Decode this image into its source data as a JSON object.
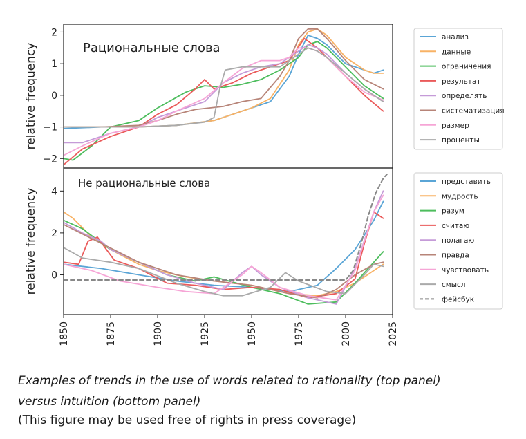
{
  "chart_data": [
    {
      "type": "line",
      "title": "Рациональные слова",
      "ylabel": "relative frequency",
      "xlim": [
        1850,
        2025
      ],
      "ylim": [
        -2.3,
        2.25
      ],
      "yticks": [
        -2,
        -1,
        0,
        1,
        2
      ],
      "legend_position": "right",
      "series": [
        {
          "name": "анализ",
          "color": "#5aa5d6",
          "dash": false,
          "x": [
            1850,
            1870,
            1890,
            1910,
            1930,
            1950,
            1960,
            1970,
            1975,
            1980,
            1985,
            1990,
            2000,
            2010,
            2015,
            2020
          ],
          "y": [
            -1.05,
            -1.0,
            -1.0,
            -0.95,
            -0.8,
            -0.4,
            -0.2,
            0.6,
            1.3,
            1.9,
            1.8,
            1.6,
            1.0,
            0.8,
            0.7,
            0.8
          ]
        },
        {
          "name": "данные",
          "color": "#f8b265",
          "dash": false,
          "x": [
            1850,
            1870,
            1890,
            1910,
            1930,
            1950,
            1960,
            1970,
            1975,
            1980,
            1985,
            1990,
            2000,
            2010,
            2015,
            2020
          ],
          "y": [
            -1.0,
            -1.0,
            -1.0,
            -0.95,
            -0.8,
            -0.4,
            -0.1,
            0.8,
            1.6,
            2.0,
            2.1,
            1.9,
            1.2,
            0.8,
            0.7,
            0.7
          ]
        },
        {
          "name": "ограничения",
          "color": "#4dbd5d",
          "dash": false,
          "x": [
            1850,
            1855,
            1865,
            1875,
            1890,
            1900,
            1915,
            1925,
            1935,
            1945,
            1955,
            1965,
            1975,
            1980,
            1985,
            1990,
            2000,
            2010,
            2020
          ],
          "y": [
            -2.0,
            -2.05,
            -1.6,
            -1.0,
            -0.8,
            -0.4,
            0.1,
            0.3,
            0.25,
            0.35,
            0.5,
            0.8,
            1.2,
            1.6,
            1.7,
            1.5,
            0.9,
            0.3,
            -0.1
          ]
        },
        {
          "name": "результат",
          "color": "#ea5a5a",
          "dash": false,
          "x": [
            1850,
            1860,
            1875,
            1890,
            1900,
            1910,
            1920,
            1925,
            1930,
            1940,
            1950,
            1960,
            1970,
            1978,
            1985,
            1990,
            2000,
            2010,
            2020
          ],
          "y": [
            -2.2,
            -1.7,
            -1.3,
            -1.0,
            -0.6,
            -0.3,
            0.2,
            0.5,
            0.2,
            0.4,
            0.7,
            0.9,
            1.1,
            1.8,
            1.5,
            1.2,
            0.6,
            0.0,
            -0.5
          ]
        },
        {
          "name": "определять",
          "color": "#c59bd8",
          "dash": false,
          "x": [
            1850,
            1860,
            1875,
            1890,
            1900,
            1910,
            1925,
            1935,
            1945,
            1955,
            1965,
            1975,
            1980,
            1985,
            1990,
            2000,
            2010,
            2020
          ],
          "y": [
            -1.5,
            -1.5,
            -1.2,
            -1.0,
            -0.7,
            -0.5,
            -0.2,
            0.4,
            0.7,
            0.9,
            1.0,
            1.4,
            1.6,
            1.5,
            1.3,
            0.7,
            0.2,
            -0.2
          ]
        },
        {
          "name": "систематизация",
          "color": "#b78478",
          "dash": false,
          "x": [
            1850,
            1870,
            1890,
            1900,
            1910,
            1920,
            1935,
            1945,
            1955,
            1965,
            1970,
            1975,
            1980,
            1985,
            1990,
            2000,
            2010,
            2020
          ],
          "y": [
            -1.0,
            -1.0,
            -0.95,
            -0.8,
            -0.6,
            -0.45,
            -0.35,
            -0.2,
            -0.1,
            0.6,
            1.1,
            1.8,
            2.1,
            2.1,
            1.8,
            1.1,
            0.5,
            0.2
          ]
        },
        {
          "name": "размер",
          "color": "#f6a5d6",
          "dash": false,
          "x": [
            1850,
            1860,
            1875,
            1890,
            1900,
            1910,
            1925,
            1935,
            1945,
            1955,
            1965,
            1970,
            1975,
            1980,
            1985,
            1990,
            2000,
            2010,
            2020
          ],
          "y": [
            -1.9,
            -1.6,
            -1.2,
            -1.0,
            -0.8,
            -0.5,
            -0.1,
            0.4,
            0.85,
            1.1,
            1.1,
            1.2,
            1.5,
            1.5,
            1.4,
            1.2,
            0.6,
            0.1,
            -0.15
          ]
        },
        {
          "name": "проценты",
          "color": "#aaaaaa",
          "dash": false,
          "x": [
            1850,
            1870,
            1890,
            1910,
            1925,
            1930,
            1933,
            1936,
            1945,
            1955,
            1965,
            1975,
            1980,
            1985,
            1990,
            2000,
            2010,
            2020
          ],
          "y": [
            -1.0,
            -1.0,
            -1.0,
            -0.95,
            -0.85,
            -0.7,
            0.2,
            0.8,
            0.9,
            0.9,
            0.9,
            1.3,
            1.5,
            1.4,
            1.2,
            0.7,
            0.2,
            -0.2
          ]
        }
      ]
    },
    {
      "type": "line",
      "title": "Не рациональные слова",
      "ylabel": "relative frequency",
      "xlabel": "",
      "xlim": [
        1850,
        2025
      ],
      "ylim": [
        -1.9,
        5.1
      ],
      "yticks": [
        0,
        2,
        4
      ],
      "xticks": [
        "1850",
        "1875",
        "1900",
        "1925",
        "1950",
        "1975",
        "2000",
        "2025"
      ],
      "legend_position": "right",
      "series": [
        {
          "name": "представить",
          "color": "#5aa5d6",
          "dash": false,
          "x": [
            1850,
            1870,
            1890,
            1910,
            1930,
            1950,
            1970,
            1985,
            1995,
            2005,
            2015,
            2020
          ],
          "y": [
            0.5,
            0.3,
            0.0,
            -0.3,
            -0.5,
            -0.6,
            -0.8,
            -0.5,
            0.3,
            1.2,
            2.6,
            3.5
          ]
        },
        {
          "name": "мудрость",
          "color": "#f8b265",
          "dash": false,
          "x": [
            1850,
            1855,
            1865,
            1875,
            1890,
            1900,
            1915,
            1930,
            1950,
            1970,
            1985,
            1995,
            2005,
            2015,
            2020
          ],
          "y": [
            3.0,
            2.7,
            1.8,
            1.2,
            0.5,
            0.2,
            -0.1,
            -0.3,
            -0.5,
            -0.9,
            -1.0,
            -0.8,
            -0.4,
            0.2,
            0.5
          ]
        },
        {
          "name": "разум",
          "color": "#4dbd5d",
          "dash": false,
          "x": [
            1850,
            1860,
            1875,
            1890,
            1905,
            1920,
            1930,
            1950,
            1965,
            1980,
            1995,
            2005,
            2015,
            2020
          ],
          "y": [
            2.6,
            2.2,
            1.2,
            0.6,
            0.0,
            -0.3,
            -0.1,
            -0.6,
            -0.9,
            -1.4,
            -1.3,
            -0.4,
            0.6,
            1.1
          ]
        },
        {
          "name": "считаю",
          "color": "#ea5a5a",
          "dash": false,
          "x": [
            1850,
            1858,
            1863,
            1868,
            1872,
            1877,
            1890,
            1905,
            1920,
            1935,
            1950,
            1965,
            1980,
            1995,
            2005,
            2010,
            2015,
            2020
          ],
          "y": [
            0.6,
            0.5,
            1.6,
            1.8,
            1.3,
            0.7,
            0.3,
            -0.4,
            -0.5,
            -0.7,
            -0.6,
            -0.7,
            -1.1,
            -0.9,
            -0.2,
            1.5,
            3.0,
            2.7
          ]
        },
        {
          "name": "полагаю",
          "color": "#c59bd8",
          "dash": false,
          "x": [
            1850,
            1860,
            1870,
            1875,
            1890,
            1905,
            1920,
            1935,
            1945,
            1950,
            1955,
            1965,
            1980,
            1995,
            2005,
            2015,
            2020
          ],
          "y": [
            2.5,
            2.0,
            1.6,
            1.2,
            0.6,
            0.0,
            -0.4,
            -0.7,
            0.1,
            0.4,
            0.0,
            -0.6,
            -1.1,
            -1.4,
            0.3,
            3.0,
            4.0
          ]
        },
        {
          "name": "правда",
          "color": "#b78478",
          "dash": false,
          "x": [
            1850,
            1870,
            1890,
            1910,
            1930,
            1950,
            1970,
            1985,
            1995,
            2005,
            2015,
            2020
          ],
          "y": [
            2.4,
            1.5,
            0.6,
            0.0,
            -0.3,
            -0.5,
            -0.9,
            -1.1,
            -0.7,
            0.0,
            0.5,
            0.6
          ]
        },
        {
          "name": "чувствовать",
          "color": "#f6a5d6",
          "dash": false,
          "x": [
            1850,
            1865,
            1880,
            1900,
            1915,
            1930,
            1945,
            1950,
            1955,
            1965,
            1980,
            1995,
            2005,
            2015,
            2020
          ],
          "y": [
            0.5,
            0.2,
            -0.3,
            -0.6,
            -0.8,
            -0.9,
            0.0,
            0.4,
            0.1,
            -0.6,
            -1.0,
            -1.2,
            0.2,
            3.0,
            3.8
          ]
        },
        {
          "name": "смысл",
          "color": "#aaaaaa",
          "dash": false,
          "x": [
            1850,
            1860,
            1875,
            1890,
            1910,
            1925,
            1935,
            1945,
            1960,
            1968,
            1975,
            1990,
            2000,
            2010,
            2015,
            2020
          ],
          "y": [
            1.3,
            0.8,
            0.6,
            0.3,
            -0.4,
            -0.8,
            -1.0,
            -1.0,
            -0.6,
            0.1,
            -0.3,
            -0.8,
            -0.9,
            0.0,
            0.5,
            0.4
          ]
        },
        {
          "name": "фейсбук",
          "color": "#888888",
          "dash": true,
          "x": [
            1850,
            2000,
            2004,
            2008,
            2012,
            2016,
            2020,
            2022
          ],
          "y": [
            -0.25,
            -0.25,
            0.2,
            1.4,
            2.8,
            3.9,
            4.6,
            4.8
          ]
        }
      ]
    }
  ],
  "caption": {
    "line1": "Examples of trends in the use of words related to rationality (top panel)",
    "line2": "versus intuition (bottom panel)",
    "line3": "(This figure may be used free of rights in press coverage)"
  }
}
